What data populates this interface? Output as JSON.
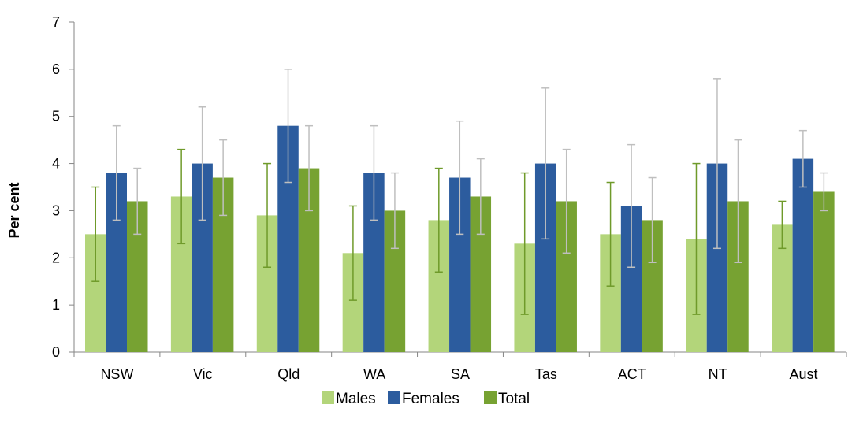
{
  "chart_data": {
    "type": "bar",
    "title": "",
    "xlabel": "",
    "ylabel": "Per cent",
    "ylim": [
      0,
      7
    ],
    "yticks": [
      0,
      1,
      2,
      3,
      4,
      5,
      6,
      7
    ],
    "grid": false,
    "legend_position": "bottom",
    "error_bar_color": "#bfbfbf",
    "categories": [
      "NSW",
      "Vic",
      "Qld",
      "WA",
      "SA",
      "Tas",
      "ACT",
      "NT",
      "Aust"
    ],
    "series": [
      {
        "name": "Males",
        "color": "#b3d57a",
        "error_color": "#6f9a2a",
        "values": [
          2.5,
          3.3,
          2.9,
          2.1,
          2.8,
          2.3,
          2.5,
          2.4,
          2.7
        ],
        "lower": [
          1.5,
          2.3,
          1.8,
          1.1,
          1.7,
          0.8,
          1.4,
          0.8,
          2.2
        ],
        "upper": [
          3.5,
          4.3,
          4.0,
          3.1,
          3.9,
          3.8,
          3.6,
          4.0,
          3.2
        ]
      },
      {
        "name": "Females",
        "color": "#2c5c9e",
        "error_color": "#bfbfbf",
        "values": [
          3.8,
          4.0,
          4.8,
          3.8,
          3.7,
          4.0,
          3.1,
          4.0,
          4.1
        ],
        "lower": [
          2.8,
          2.8,
          3.6,
          2.8,
          2.5,
          2.4,
          1.8,
          2.2,
          3.5
        ],
        "upper": [
          4.8,
          5.2,
          6.0,
          4.8,
          4.9,
          5.6,
          4.4,
          5.8,
          4.7
        ]
      },
      {
        "name": "Total",
        "color": "#77a232",
        "error_color": "#bfbfbf",
        "values": [
          3.2,
          3.7,
          3.9,
          3.0,
          3.3,
          3.2,
          2.8,
          3.2,
          3.4
        ],
        "lower": [
          2.5,
          2.9,
          3.0,
          2.2,
          2.5,
          2.1,
          1.9,
          1.9,
          3.0
        ],
        "upper": [
          3.9,
          4.5,
          4.8,
          3.8,
          4.1,
          4.3,
          3.7,
          4.5,
          3.8
        ]
      }
    ]
  }
}
